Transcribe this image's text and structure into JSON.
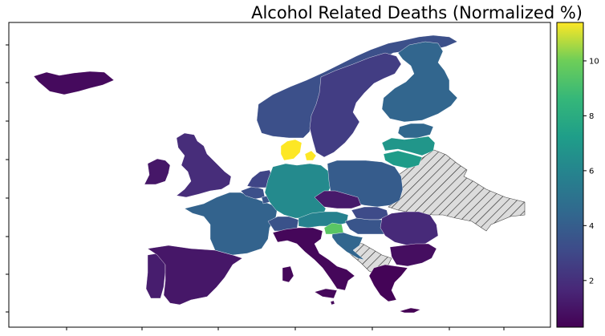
{
  "chart": {
    "title": "Alcohol Related Deaths (Normalized %)"
  },
  "colorbar": {
    "min": 0.3,
    "max": 11.4,
    "ticks": [
      2,
      4,
      6,
      8,
      10
    ]
  },
  "chart_data": {
    "type": "choropleth",
    "title": "Alcohol Related Deaths (Normalized %)",
    "colormap": "viridis",
    "value_range": [
      0.3,
      11.4
    ],
    "no_data_style": "hatched grey",
    "regions": [
      {
        "name": "Iceland",
        "value": 0.6
      },
      {
        "name": "Ireland",
        "value": 1.0
      },
      {
        "name": "United Kingdom",
        "value": 1.7
      },
      {
        "name": "Portugal",
        "value": 1.2
      },
      {
        "name": "Spain",
        "value": 1.0
      },
      {
        "name": "France",
        "value": 3.8
      },
      {
        "name": "Belgium",
        "value": 3.0
      },
      {
        "name": "Netherlands",
        "value": 2.6
      },
      {
        "name": "Luxembourg",
        "value": 3.2
      },
      {
        "name": "Switzerland",
        "value": 3.1
      },
      {
        "name": "Germany",
        "value": 5.6
      },
      {
        "name": "Denmark",
        "value": 11.4
      },
      {
        "name": "Norway",
        "value": 3.0
      },
      {
        "name": "Sweden",
        "value": 2.3
      },
      {
        "name": "Finland",
        "value": 3.9
      },
      {
        "name": "Estonia",
        "value": 4.0
      },
      {
        "name": "Latvia",
        "value": 6.1
      },
      {
        "name": "Lithuania",
        "value": 6.4
      },
      {
        "name": "Poland",
        "value": 3.5
      },
      {
        "name": "Czechia",
        "value": 1.1
      },
      {
        "name": "Slovakia",
        "value": 2.8
      },
      {
        "name": "Austria",
        "value": 5.2
      },
      {
        "name": "Hungary",
        "value": 3.2
      },
      {
        "name": "Slovenia",
        "value": 8.5
      },
      {
        "name": "Croatia",
        "value": 3.9
      },
      {
        "name": "Italy",
        "value": 0.5
      },
      {
        "name": "Romania",
        "value": 1.6
      },
      {
        "name": "Bulgaria",
        "value": 0.7
      },
      {
        "name": "Greece",
        "value": 0.4
      },
      {
        "name": "Cyprus",
        "value": 0.3
      },
      {
        "name": "Malta",
        "value": 0.5
      }
    ]
  }
}
